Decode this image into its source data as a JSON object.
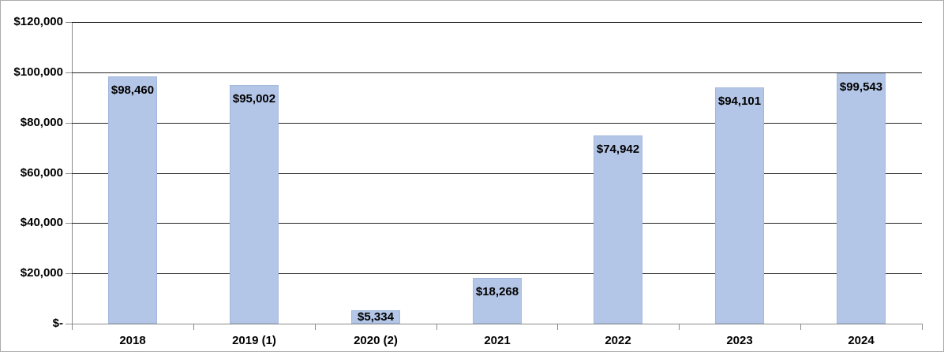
{
  "chart_data": {
    "type": "bar",
    "title": "",
    "xlabel": "",
    "ylabel": "",
    "categories": [
      "2018",
      "2019 (1)",
      "2020 (2)",
      "2021",
      "2022",
      "2023",
      "2024"
    ],
    "values": [
      98460,
      95002,
      5334,
      18268,
      74942,
      94101,
      99543
    ],
    "value_labels": [
      "$98,460",
      "$95,002",
      "$5,334",
      "$18,268",
      "$74,942",
      "$94,101",
      "$99,543"
    ],
    "ylim": [
      0,
      120000
    ],
    "y_ticks": [
      {
        "label": "$120,000",
        "value": 120000
      },
      {
        "label": "$100,000",
        "value": 100000
      },
      {
        "label": "$80,000",
        "value": 80000
      },
      {
        "label": "$60,000",
        "value": 60000
      },
      {
        "label": "$40,000",
        "value": 40000
      },
      {
        "label": "$20,000",
        "value": 20000
      },
      {
        "label": "$-",
        "value": 0
      }
    ],
    "grid": true,
    "legend": false,
    "label_position": "inside-end",
    "colors": {
      "bar_fill": "#b4c6e7",
      "bar_border": "#a3b8dd",
      "gridline": "#262626",
      "axis_line": "#8a8a8a",
      "text": "#000000",
      "chart_border": "#ababab",
      "background": "#ffffff"
    }
  }
}
